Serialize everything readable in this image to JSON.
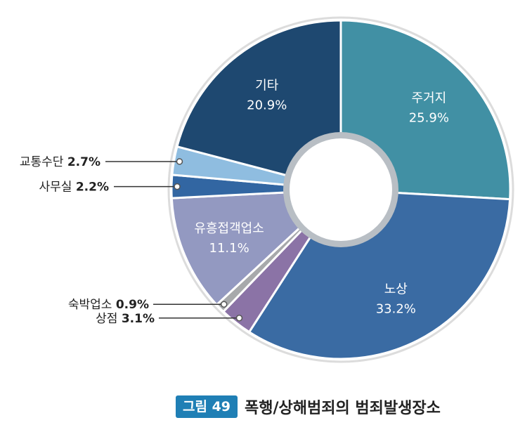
{
  "chart_data": {
    "type": "pie",
    "categories": [
      "주거지",
      "노상",
      "상점",
      "숙박업소",
      "유흥접객업소",
      "사무실",
      "교통수단",
      "기타"
    ],
    "values": [
      25.9,
      33.2,
      3.1,
      0.9,
      11.1,
      2.2,
      2.7,
      20.9
    ],
    "value_labels": [
      "25.9%",
      "33.2%",
      "3.1%",
      "0.9%",
      "11.1%",
      "2.2%",
      "2.7%",
      "20.9%"
    ],
    "colors": [
      "#4190a4",
      "#3a6ba3",
      "#8b73a6",
      "#a7a9ab",
      "#9399c1",
      "#3266a2",
      "#8fbde0",
      "#1e4870"
    ],
    "style": "donut",
    "title": ""
  },
  "caption": {
    "figure_label": "그림 49",
    "title": "폭행/상해범죄의 범죄발생장소"
  }
}
